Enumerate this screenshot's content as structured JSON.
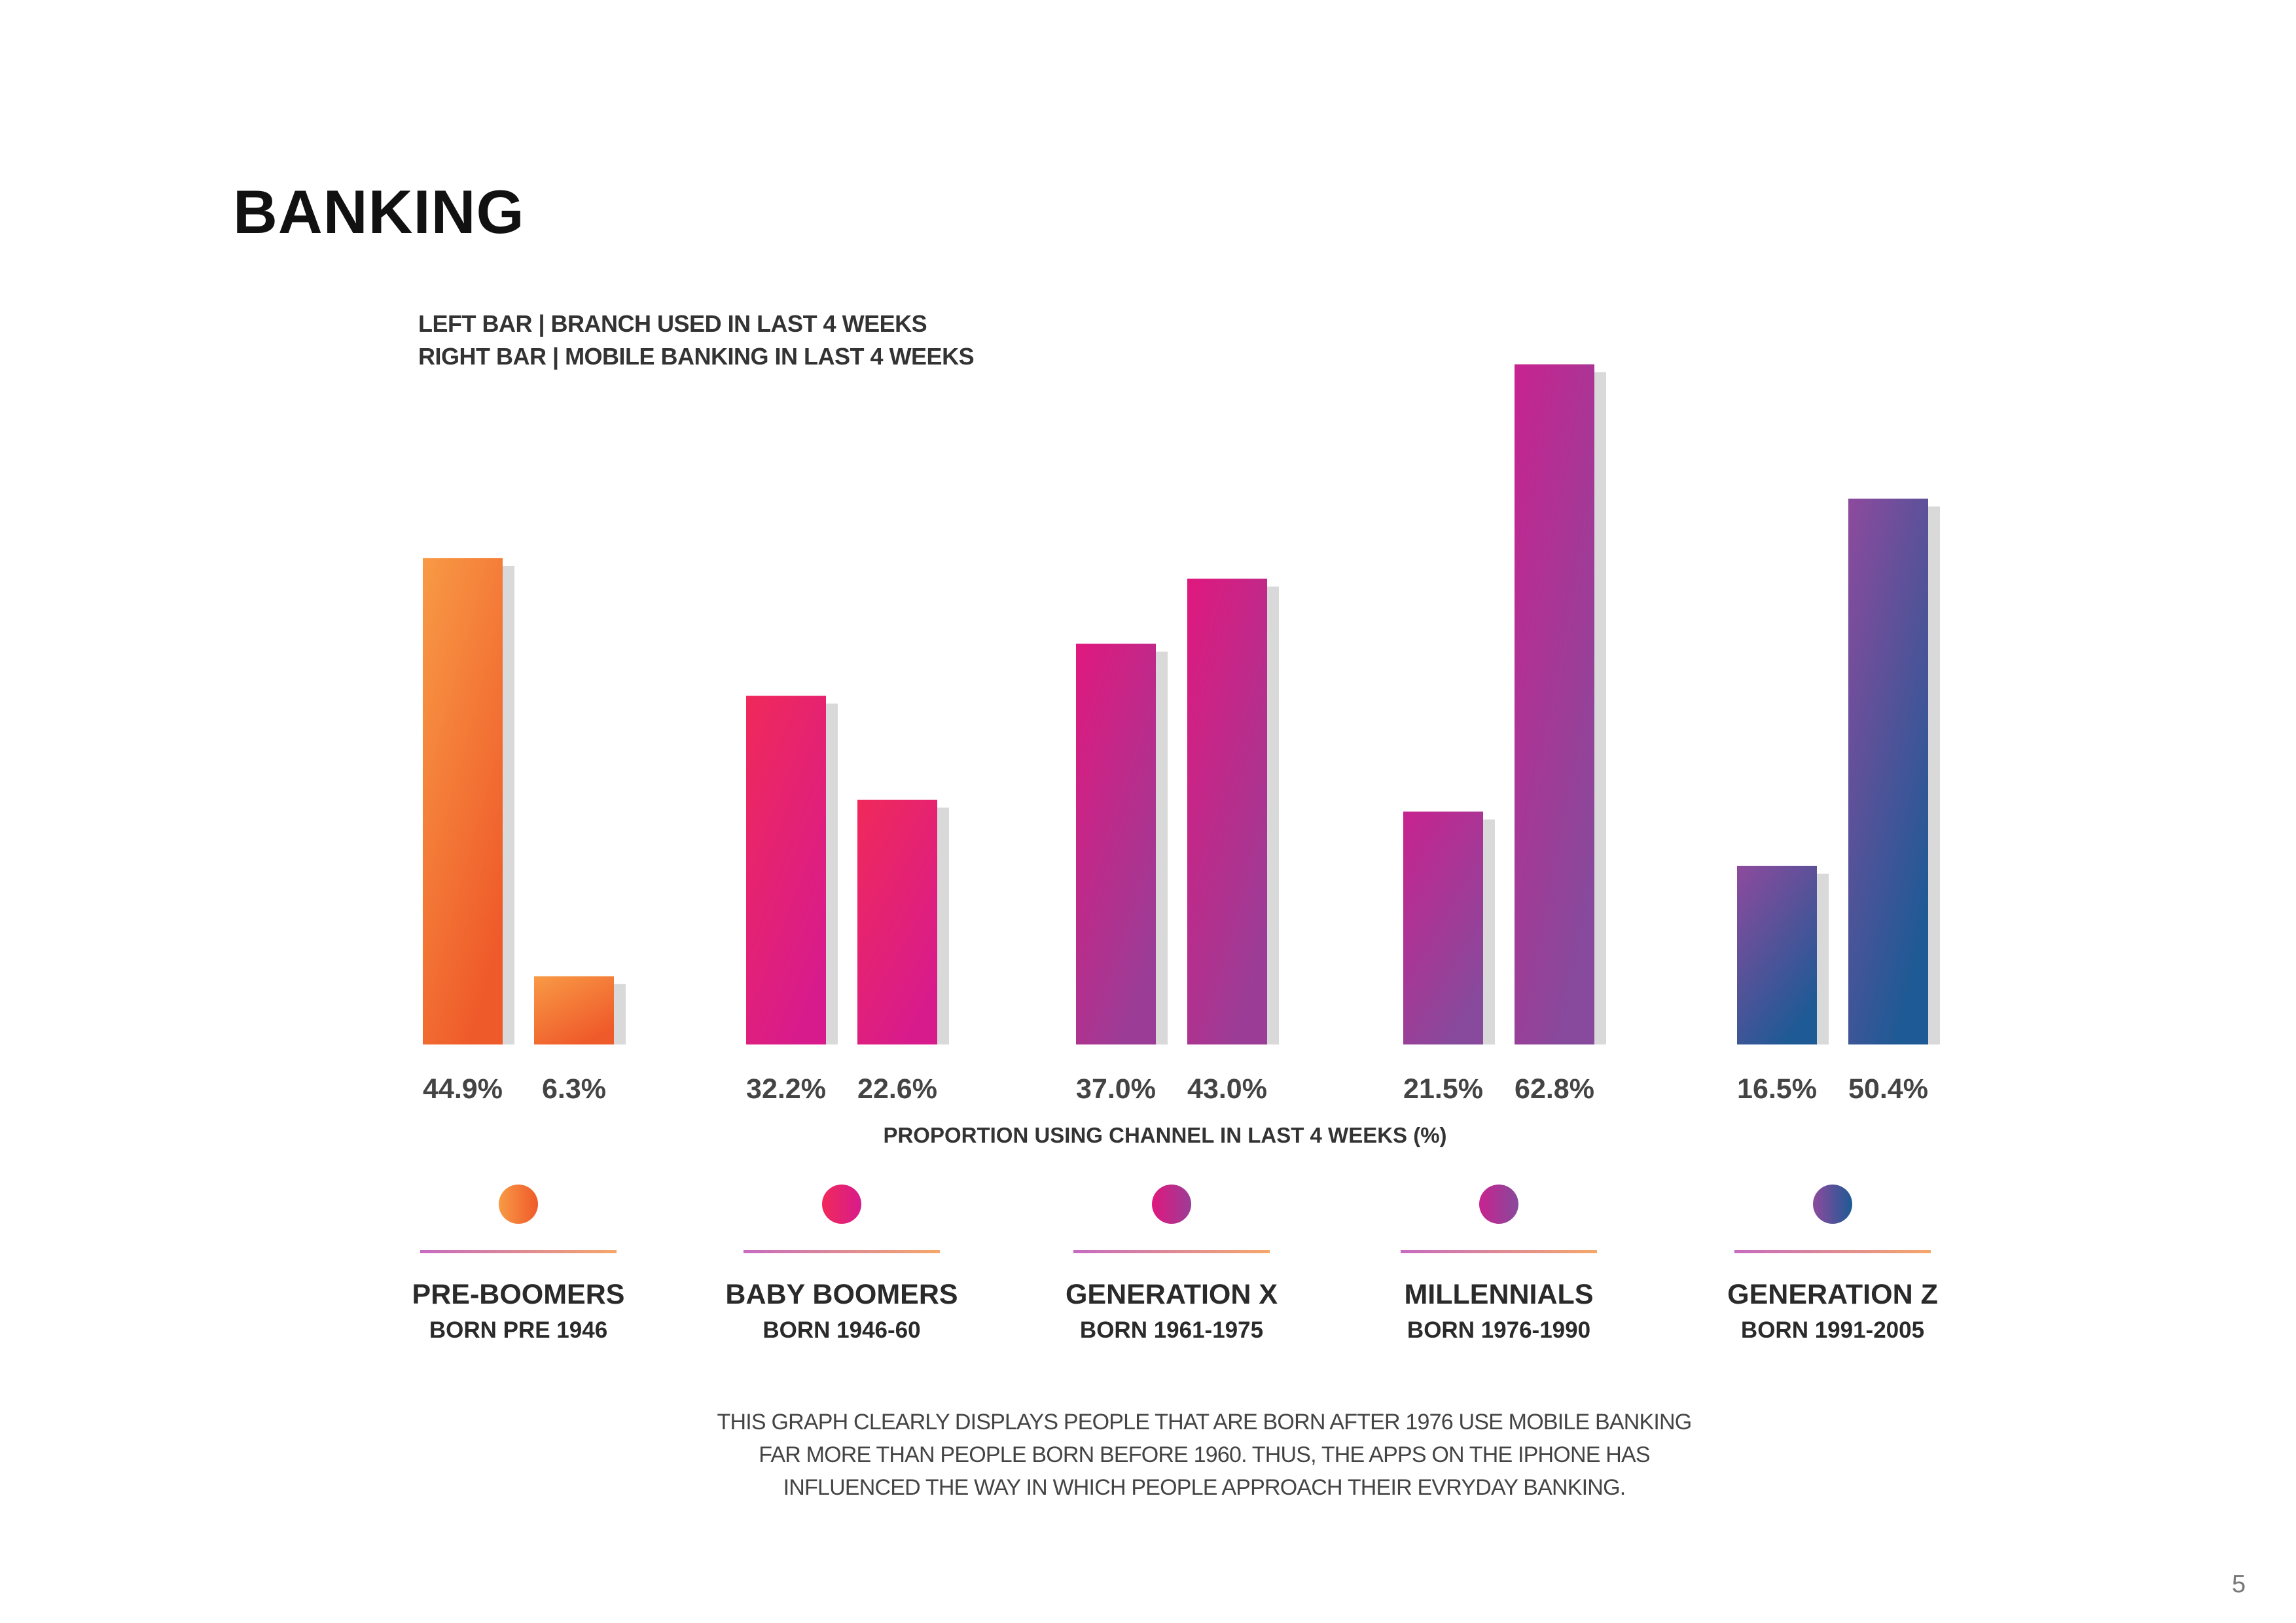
{
  "page": {
    "title": "BANKING",
    "legend_lines": [
      "LEFT BAR | BRANCH USED IN LAST 4 WEEKS",
      "RIGHT BAR | MOBILE BANKING IN LAST 4 WEEKS"
    ],
    "caption": "THIS GRAPH CLEARLY DISPLAYS PEOPLE THAT ARE BORN AFTER 1976 USE MOBILE BANKING FAR MORE THAN PEOPLE BORN BEFORE 1960. THUS, THE APPS ON THE IPHONE HAS INFLUENCED THE WAY IN WHICH PEOPLE APPROACH THEIR EVRYDAY BANKING.",
    "page_number": "5"
  },
  "chart_data": {
    "type": "bar",
    "title": "",
    "xlabel": "PROPORTION USING CHANNEL IN LAST 4 WEEKS (%)",
    "ylabel": "",
    "ylim": [
      0,
      70
    ],
    "grid": false,
    "categories": [
      "PRE-BOOMERS",
      "BABY BOOMERS",
      "GENERATION X",
      "MILLENNIALS",
      "GENERATION Z"
    ],
    "subtitles": [
      "BORN PRE 1946",
      "BORN 1946-60",
      "BORN 1961-1975",
      "BORN 1976-1990",
      "BORN 1991-2005"
    ],
    "series": [
      {
        "values": [
          44.9,
          32.2,
          37.0,
          21.5,
          16.5
        ]
      },
      {
        "values": [
          6.3,
          22.6,
          43.0,
          62.8,
          50.4
        ]
      }
    ],
    "value_labels": [
      [
        "44.9%",
        "6.3%"
      ],
      [
        "32.2%",
        "22.6%"
      ],
      [
        "37.0%",
        "43.0%"
      ],
      [
        "21.5%",
        "62.8%"
      ],
      [
        "16.5%",
        "50.4%"
      ]
    ],
    "colors": [
      [
        "#f89a45",
        "#ef5a2a"
      ],
      [
        "#f0295a",
        "#d81b8c"
      ],
      [
        "#e0187e",
        "#9b3d96"
      ],
      [
        "#c8238f",
        "#874a9c"
      ],
      [
        "#8e4a9d",
        "#1e5a95"
      ]
    ]
  }
}
